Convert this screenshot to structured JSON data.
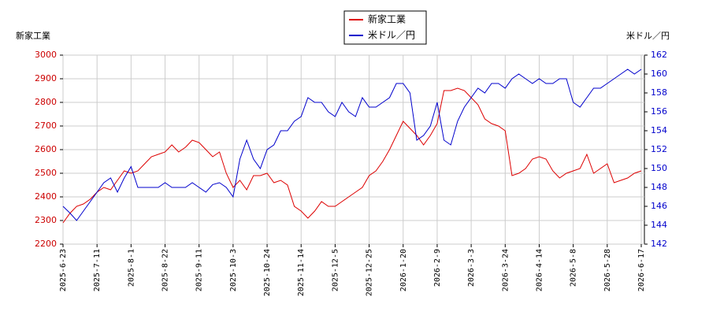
{
  "chart_data": {
    "type": "line",
    "ylabel": "新家工業",
    "y2label": "米ドル／円",
    "categories": [
      "2025-6-23",
      null,
      null,
      null,
      null,
      "2025-7-11",
      null,
      null,
      null,
      null,
      "2025-8-1",
      null,
      null,
      null,
      null,
      "2025-8-22",
      null,
      null,
      null,
      null,
      "2025-9-11",
      null,
      null,
      null,
      null,
      "2025-10-3",
      null,
      null,
      null,
      null,
      "2025-10-24",
      null,
      null,
      null,
      null,
      "2025-11-14",
      null,
      null,
      null,
      null,
      "2025-12-5",
      null,
      null,
      null,
      null,
      "2025-12-25",
      null,
      null,
      null,
      null,
      "2026-1-20",
      null,
      null,
      null,
      null,
      "2026-2-9",
      null,
      null,
      null,
      null,
      "2026-3-3",
      null,
      null,
      null,
      null,
      "2026-3-24",
      null,
      null,
      null,
      null,
      "2026-4-14",
      null,
      null,
      null,
      null,
      "2026-5-8",
      null,
      null,
      null,
      null,
      "2026-5-28",
      null,
      null,
      null,
      null,
      "2026-6-17"
    ],
    "series": [
      {
        "name": "新家工業",
        "color": "#dd0000",
        "axis": "y",
        "values": [
          2290,
          2330,
          2360,
          2370,
          2390,
          2420,
          2440,
          2430,
          2470,
          2510,
          2500,
          2510,
          2540,
          2570,
          2580,
          2590,
          2620,
          2590,
          2610,
          2640,
          2630,
          2600,
          2570,
          2590,
          2500,
          2440,
          2470,
          2430,
          2490,
          2490,
          2500,
          2460,
          2470,
          2450,
          2360,
          2340,
          2310,
          2340,
          2380,
          2360,
          2360,
          2380,
          2400,
          2420,
          2440,
          2490,
          2510,
          2550,
          2600,
          2660,
          2720,
          2690,
          2660,
          2620,
          2660,
          2710,
          2850,
          2850,
          2860,
          2850,
          2820,
          2790,
          2730,
          2710,
          2700,
          2680,
          2490,
          2500,
          2520,
          2560,
          2570,
          2560,
          2510,
          2480,
          2500,
          2510,
          2520,
          2580,
          2500,
          2520,
          2540,
          2460,
          2470,
          2480,
          2500,
          2510
        ]
      },
      {
        "name": "米ドル／円",
        "color": "#0000cc",
        "axis": "y2",
        "values": [
          146,
          145.3,
          144.5,
          145.5,
          146.5,
          147.5,
          148.5,
          149,
          147.5,
          149,
          150.2,
          148,
          148,
          148,
          148,
          148.5,
          148,
          148,
          148,
          148.5,
          148,
          147.5,
          148.3,
          148.5,
          148,
          147,
          151,
          153,
          151,
          150,
          152,
          152.5,
          154,
          154,
          155,
          155.5,
          157.5,
          157,
          157,
          156,
          155.5,
          157,
          156,
          155.5,
          157.5,
          156.5,
          156.5,
          157,
          157.5,
          159,
          159,
          158,
          153,
          153.5,
          154.5,
          157,
          153,
          152.5,
          155,
          156.5,
          157.5,
          158.5,
          158,
          159,
          159,
          158.5,
          159.5,
          160,
          159.5,
          159,
          159.5,
          159,
          159,
          159.5,
          159.5,
          157,
          156.5,
          157.5,
          158.5,
          158.5,
          159,
          159.5,
          160,
          160.5,
          160,
          160.5
        ]
      }
    ],
    "ylim": [
      2200,
      3000
    ],
    "yticks": [
      2200,
      2300,
      2400,
      2500,
      2600,
      2700,
      2800,
      2900,
      3000
    ],
    "y2lim": [
      142,
      162
    ],
    "y2ticks": [
      142,
      144,
      146,
      148,
      150,
      152,
      154,
      156,
      158,
      160,
      162
    ],
    "grid": true
  }
}
